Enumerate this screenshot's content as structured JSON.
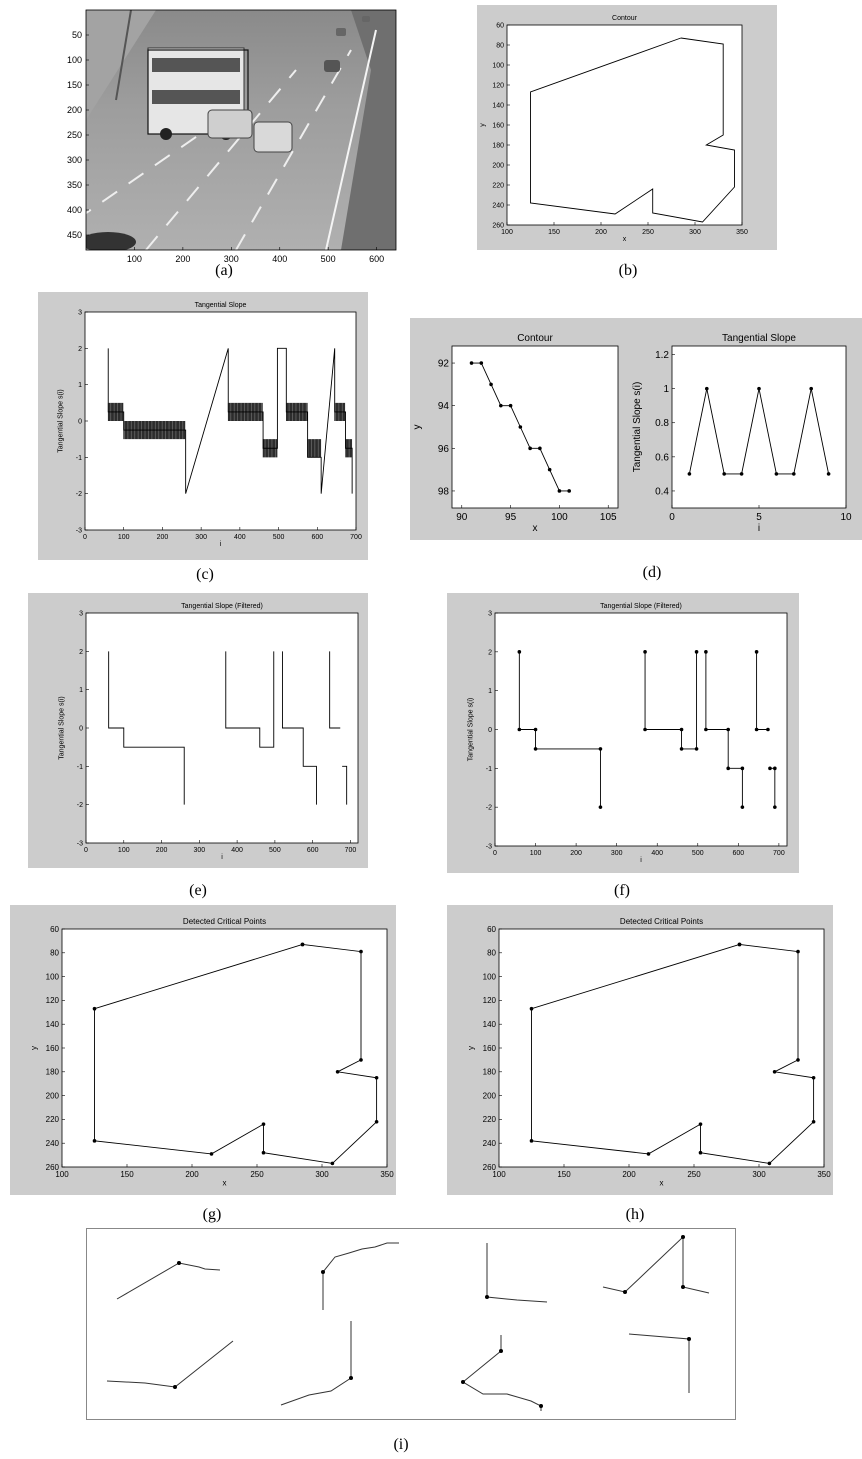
{
  "captions": [
    "(a)",
    "(b)",
    "(c)",
    "(d)",
    "(e)",
    "(f)",
    "(g)",
    "(h)",
    "(i)"
  ],
  "panel_a": {
    "x_ticks": [
      "100",
      "200",
      "300",
      "400",
      "500",
      "600"
    ],
    "y_ticks": [
      "50",
      "100",
      "150",
      "200",
      "250",
      "300",
      "350",
      "400",
      "450"
    ]
  },
  "chart_data": [
    {
      "id": "b",
      "type": "line",
      "title": "Contour",
      "xlabel": "x",
      "ylabel": "y",
      "xlim": [
        100,
        350
      ],
      "ylim": [
        60,
        260
      ],
      "y_reversed": true,
      "x_ticks": [
        100,
        150,
        200,
        250,
        300,
        350
      ],
      "y_ticks": [
        60,
        80,
        100,
        120,
        140,
        160,
        180,
        200,
        220,
        240,
        260
      ],
      "series": [
        {
          "x": [
            285,
            330,
            330,
            312,
            342,
            342,
            308,
            255,
            255,
            215,
            125,
            125,
            285
          ],
          "y": [
            73,
            79,
            170,
            180,
            185,
            222,
            257,
            248,
            224,
            249,
            238,
            127,
            73
          ]
        }
      ]
    },
    {
      "id": "c",
      "type": "line",
      "title": "Tangential Slope",
      "xlabel": "i",
      "ylabel": "Tangential Slope s(i)",
      "xlim": [
        0,
        700
      ],
      "ylim": [
        -3,
        3
      ],
      "x_ticks": [
        0,
        100,
        200,
        300,
        400,
        500,
        600,
        700
      ],
      "y_ticks": [
        -3,
        -2,
        -1,
        0,
        1,
        2,
        3
      ],
      "series": [
        {
          "x": [
            60,
            60,
            100,
            100,
            260,
            260,
            370,
            370,
            460,
            460,
            497,
            497,
            520,
            520,
            575,
            575,
            610,
            610,
            645,
            645,
            673,
            673,
            690,
            690
          ],
          "y": [
            2,
            0.25,
            0.25,
            -0.25,
            -0.25,
            -2,
            2,
            0.25,
            0.25,
            -0.75,
            -0.75,
            2,
            2,
            0.25,
            0.25,
            -1,
            -1,
            -2,
            2,
            0.25,
            0.25,
            -0.75,
            -0.75,
            -2
          ]
        }
      ],
      "oscillating": [
        {
          "start": 60,
          "end": 100,
          "low": 0,
          "high": 0.5
        },
        {
          "start": 100,
          "end": 260,
          "low": -0.5,
          "high": 0
        },
        {
          "start": 370,
          "end": 460,
          "low": 0,
          "high": 0.5
        },
        {
          "start": 460,
          "end": 497,
          "low": -1,
          "high": -0.5
        },
        {
          "start": 520,
          "end": 575,
          "low": 0,
          "high": 0.5
        },
        {
          "start": 575,
          "end": 610,
          "low": -1,
          "high": -0.5
        },
        {
          "start": 645,
          "end": 673,
          "low": 0,
          "high": 0.5
        },
        {
          "start": 673,
          "end": 690,
          "low": -1,
          "high": -0.5
        }
      ]
    },
    {
      "id": "d1",
      "type": "line",
      "title": "Contour",
      "xlabel": "x",
      "ylabel": "y",
      "xlim": [
        89,
        106
      ],
      "ylim": [
        91.2,
        98.8
      ],
      "y_reversed": true,
      "x_ticks": [
        90,
        95,
        100,
        105
      ],
      "y_ticks": [
        92,
        94,
        96,
        98
      ],
      "series": [
        {
          "x": [
            91,
            92,
            93,
            94,
            95,
            96,
            97,
            98,
            99,
            100,
            101
          ],
          "y": [
            92,
            92,
            93,
            94,
            94,
            95,
            96,
            96,
            97,
            98,
            98
          ],
          "markers": true
        }
      ]
    },
    {
      "id": "d2",
      "type": "line",
      "title": "Tangential Slope",
      "xlabel": "i",
      "ylabel": "Tangential Slope s(i)",
      "xlim": [
        0,
        10
      ],
      "ylim": [
        0.3,
        1.25
      ],
      "x_ticks": [
        0,
        5,
        10
      ],
      "y_ticks": [
        0.4,
        0.6,
        0.8,
        1,
        1.2
      ],
      "series": [
        {
          "x": [
            1,
            2,
            3,
            4,
            5,
            6,
            7,
            8,
            9
          ],
          "y": [
            0.5,
            1,
            0.5,
            0.5,
            1,
            0.5,
            0.5,
            1,
            0.5
          ],
          "markers": true
        }
      ]
    },
    {
      "id": "e",
      "type": "line",
      "title": "Tangential Slope (Filtered)",
      "xlabel": "i",
      "ylabel": "Tangential Slope s(i)",
      "xlim": [
        0,
        720
      ],
      "ylim": [
        -3,
        3
      ],
      "x_ticks": [
        0,
        100,
        200,
        300,
        400,
        500,
        600,
        700
      ],
      "y_ticks": [
        -3,
        -2,
        -1,
        0,
        1,
        2,
        3
      ],
      "series": [
        {
          "x": [
            60,
            60,
            100,
            100,
            260,
            260
          ],
          "y": [
            2,
            0,
            0,
            -0.5,
            -0.5,
            -2
          ]
        },
        {
          "x": [
            370,
            370,
            460,
            460,
            497,
            497
          ],
          "y": [
            2,
            0,
            0,
            -0.5,
            -0.5,
            2
          ]
        },
        {
          "x": [
            520,
            520,
            575,
            575,
            610,
            610
          ],
          "y": [
            2,
            0,
            0,
            -1,
            -1,
            -2
          ]
        },
        {
          "x": [
            645,
            645,
            673
          ],
          "y": [
            2,
            0,
            0
          ]
        },
        {
          "x": [
            678,
            690,
            690
          ],
          "y": [
            -1,
            -1,
            -2
          ]
        }
      ]
    },
    {
      "id": "f",
      "type": "line",
      "title": "Tangential Slope (Filtered)",
      "xlabel": "i",
      "ylabel": "Tangential Slope s(i)",
      "xlim": [
        0,
        720
      ],
      "ylim": [
        -3,
        3
      ],
      "x_ticks": [
        0,
        100,
        200,
        300,
        400,
        500,
        600,
        700
      ],
      "y_ticks": [
        -3,
        -2,
        -1,
        0,
        1,
        2,
        3
      ],
      "series": [
        {
          "x": [
            60,
            60,
            100,
            100,
            260,
            260
          ],
          "y": [
            2,
            0,
            0,
            -0.5,
            -0.5,
            -2
          ],
          "markers": true
        },
        {
          "x": [
            370,
            370,
            460,
            460,
            497,
            497
          ],
          "y": [
            2,
            0,
            0,
            -0.5,
            -0.5,
            2
          ],
          "markers": true
        },
        {
          "x": [
            520,
            520,
            575,
            575,
            610,
            610
          ],
          "y": [
            2,
            0,
            0,
            -1,
            -1,
            -2
          ],
          "markers": true
        },
        {
          "x": [
            645,
            645,
            673
          ],
          "y": [
            2,
            0,
            0
          ],
          "markers": true
        },
        {
          "x": [
            678,
            690,
            690
          ],
          "y": [
            -1,
            -1,
            -2
          ],
          "markers": true
        }
      ]
    },
    {
      "id": "g",
      "type": "line",
      "title": "Detected Critical Points",
      "xlabel": "x",
      "ylabel": "y",
      "xlim": [
        100,
        350
      ],
      "ylim": [
        60,
        260
      ],
      "y_reversed": true,
      "x_ticks": [
        100,
        150,
        200,
        250,
        300,
        350
      ],
      "y_ticks": [
        60,
        80,
        100,
        120,
        140,
        160,
        180,
        200,
        220,
        240,
        260
      ],
      "series": [
        {
          "x": [
            285,
            330,
            330,
            312,
            342,
            342,
            308,
            255,
            255,
            215,
            125,
            125,
            285
          ],
          "y": [
            73,
            79,
            170,
            180,
            185,
            222,
            257,
            248,
            224,
            249,
            238,
            127,
            73
          ],
          "markers": true
        }
      ]
    },
    {
      "id": "h",
      "type": "line",
      "title": "Detected Critical Points",
      "xlabel": "x",
      "ylabel": "y",
      "xlim": [
        100,
        350
      ],
      "ylim": [
        60,
        260
      ],
      "y_reversed": true,
      "x_ticks": [
        100,
        150,
        200,
        250,
        300,
        350
      ],
      "y_ticks": [
        60,
        80,
        100,
        120,
        140,
        160,
        180,
        200,
        220,
        240,
        260
      ],
      "series": [
        {
          "x": [
            285,
            330,
            330,
            312,
            342,
            342,
            308,
            255,
            255,
            215,
            125,
            125,
            285
          ],
          "y": [
            73,
            79,
            170,
            180,
            185,
            222,
            257,
            248,
            224,
            249,
            238,
            127,
            73
          ],
          "markers": true
        }
      ]
    }
  ]
}
